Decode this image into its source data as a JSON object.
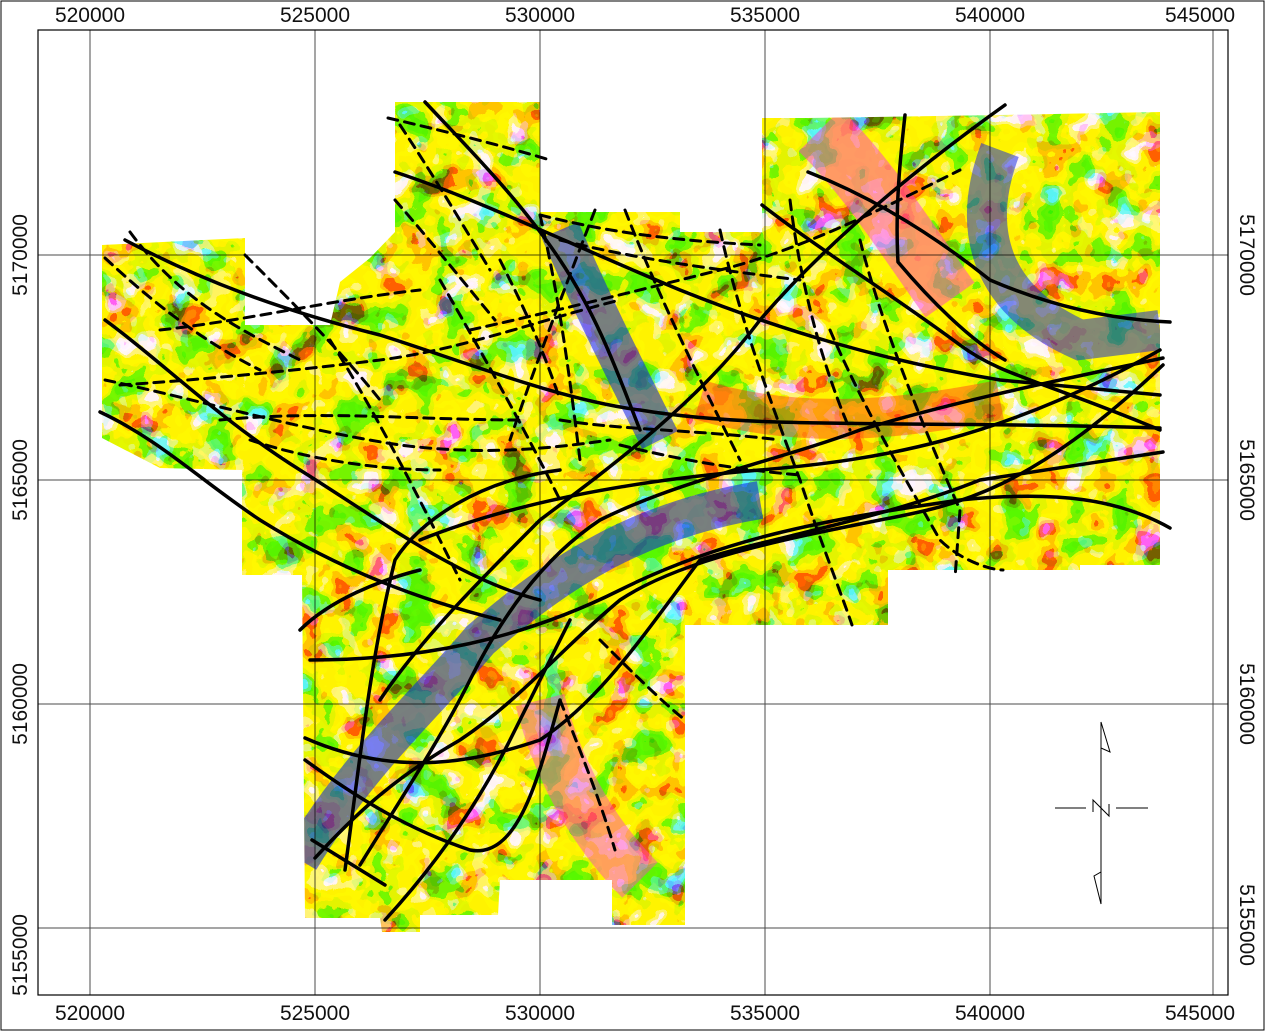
{
  "map": {
    "x_ticks": [
      "520000",
      "525000",
      "530000",
      "535000",
      "540000",
      "545000"
    ],
    "y_ticks": [
      "5170000",
      "5165000",
      "5160000",
      "5155000"
    ],
    "colors": {
      "frame": "#000000",
      "grid": "#000000",
      "outside": "#ffffff",
      "palette": [
        "#0a1ee6",
        "#1f9bff",
        "#19e6e6",
        "#2ee62e",
        "#c8f000",
        "#ffe600",
        "#ff8c00",
        "#ff1e1e",
        "#ff3cc8",
        "#ffa0ff"
      ],
      "lineaments": "#000000"
    },
    "legend": {
      "north_arrow_icon": "north-arrow"
    }
  }
}
